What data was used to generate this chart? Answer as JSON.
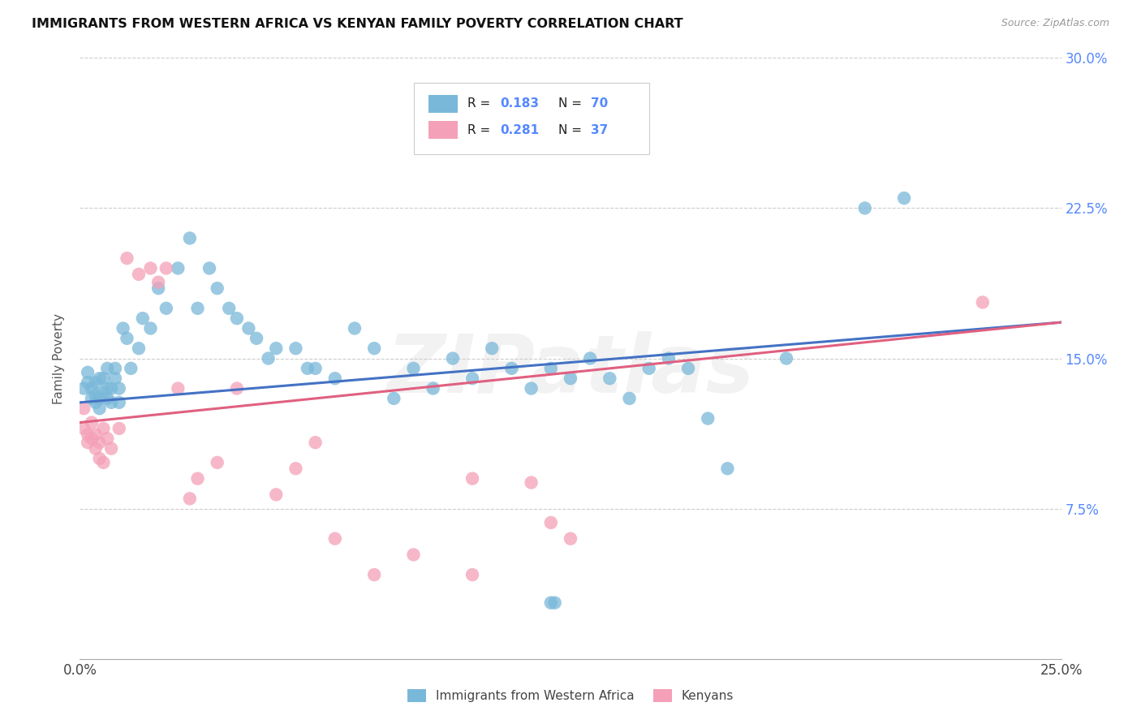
{
  "title": "IMMIGRANTS FROM WESTERN AFRICA VS KENYAN FAMILY POVERTY CORRELATION CHART",
  "source": "Source: ZipAtlas.com",
  "ylabel": "Family Poverty",
  "xlim": [
    0.0,
    0.25
  ],
  "ylim": [
    0.0,
    0.3
  ],
  "xtick_positions": [
    0.0,
    0.05,
    0.1,
    0.15,
    0.2,
    0.25
  ],
  "xtick_labels": [
    "0.0%",
    "",
    "",
    "",
    "",
    "25.0%"
  ],
  "ytick_positions": [
    0.075,
    0.15,
    0.225,
    0.3
  ],
  "ytick_labels": [
    "7.5%",
    "15.0%",
    "22.5%",
    "30.0%"
  ],
  "legend_label1": "Immigrants from Western Africa",
  "legend_label2": "Kenyans",
  "color1": "#7ab8d9",
  "color2": "#f4a0b8",
  "line_color1": "#4472c4",
  "line_color2": "#e06080",
  "watermark": "ZIPatlas",
  "blue_x": [
    0.001,
    0.002,
    0.002,
    0.003,
    0.003,
    0.004,
    0.004,
    0.004,
    0.005,
    0.005,
    0.005,
    0.006,
    0.006,
    0.007,
    0.007,
    0.007,
    0.008,
    0.008,
    0.009,
    0.009,
    0.01,
    0.01,
    0.011,
    0.012,
    0.013,
    0.015,
    0.016,
    0.018,
    0.02,
    0.022,
    0.025,
    0.028,
    0.03,
    0.033,
    0.035,
    0.038,
    0.04,
    0.043,
    0.045,
    0.048,
    0.05,
    0.055,
    0.058,
    0.06,
    0.065,
    0.07,
    0.075,
    0.08,
    0.085,
    0.09,
    0.095,
    0.1,
    0.105,
    0.11,
    0.115,
    0.12,
    0.125,
    0.13,
    0.135,
    0.14,
    0.145,
    0.15,
    0.155,
    0.16,
    0.165,
    0.18,
    0.2,
    0.21,
    0.12,
    0.121
  ],
  "blue_y": [
    0.135,
    0.138,
    0.143,
    0.13,
    0.135,
    0.128,
    0.132,
    0.138,
    0.125,
    0.13,
    0.14,
    0.133,
    0.14,
    0.13,
    0.135,
    0.145,
    0.128,
    0.135,
    0.14,
    0.145,
    0.128,
    0.135,
    0.165,
    0.16,
    0.145,
    0.155,
    0.17,
    0.165,
    0.185,
    0.175,
    0.195,
    0.21,
    0.175,
    0.195,
    0.185,
    0.175,
    0.17,
    0.165,
    0.16,
    0.15,
    0.155,
    0.155,
    0.145,
    0.145,
    0.14,
    0.165,
    0.155,
    0.13,
    0.145,
    0.135,
    0.15,
    0.14,
    0.155,
    0.145,
    0.135,
    0.145,
    0.14,
    0.15,
    0.14,
    0.13,
    0.145,
    0.15,
    0.145,
    0.12,
    0.095,
    0.15,
    0.225,
    0.23,
    0.028,
    0.028
  ],
  "pink_x": [
    0.001,
    0.001,
    0.002,
    0.002,
    0.003,
    0.003,
    0.004,
    0.004,
    0.005,
    0.005,
    0.006,
    0.006,
    0.007,
    0.008,
    0.01,
    0.012,
    0.015,
    0.018,
    0.02,
    0.022,
    0.025,
    0.028,
    0.03,
    0.035,
    0.04,
    0.05,
    0.055,
    0.06,
    0.065,
    0.075,
    0.085,
    0.1,
    0.115,
    0.12,
    0.125,
    0.23,
    0.1
  ],
  "pink_y": [
    0.125,
    0.115,
    0.112,
    0.108,
    0.11,
    0.118,
    0.105,
    0.112,
    0.1,
    0.108,
    0.098,
    0.115,
    0.11,
    0.105,
    0.115,
    0.2,
    0.192,
    0.195,
    0.188,
    0.195,
    0.135,
    0.08,
    0.09,
    0.098,
    0.135,
    0.082,
    0.095,
    0.108,
    0.06,
    0.042,
    0.052,
    0.09,
    0.088,
    0.068,
    0.06,
    0.178,
    0.042
  ],
  "blue_line_x": [
    0.0,
    0.25
  ],
  "blue_line_y": [
    0.128,
    0.168
  ],
  "pink_line_x": [
    0.0,
    0.25
  ],
  "pink_line_y": [
    0.118,
    0.168
  ]
}
